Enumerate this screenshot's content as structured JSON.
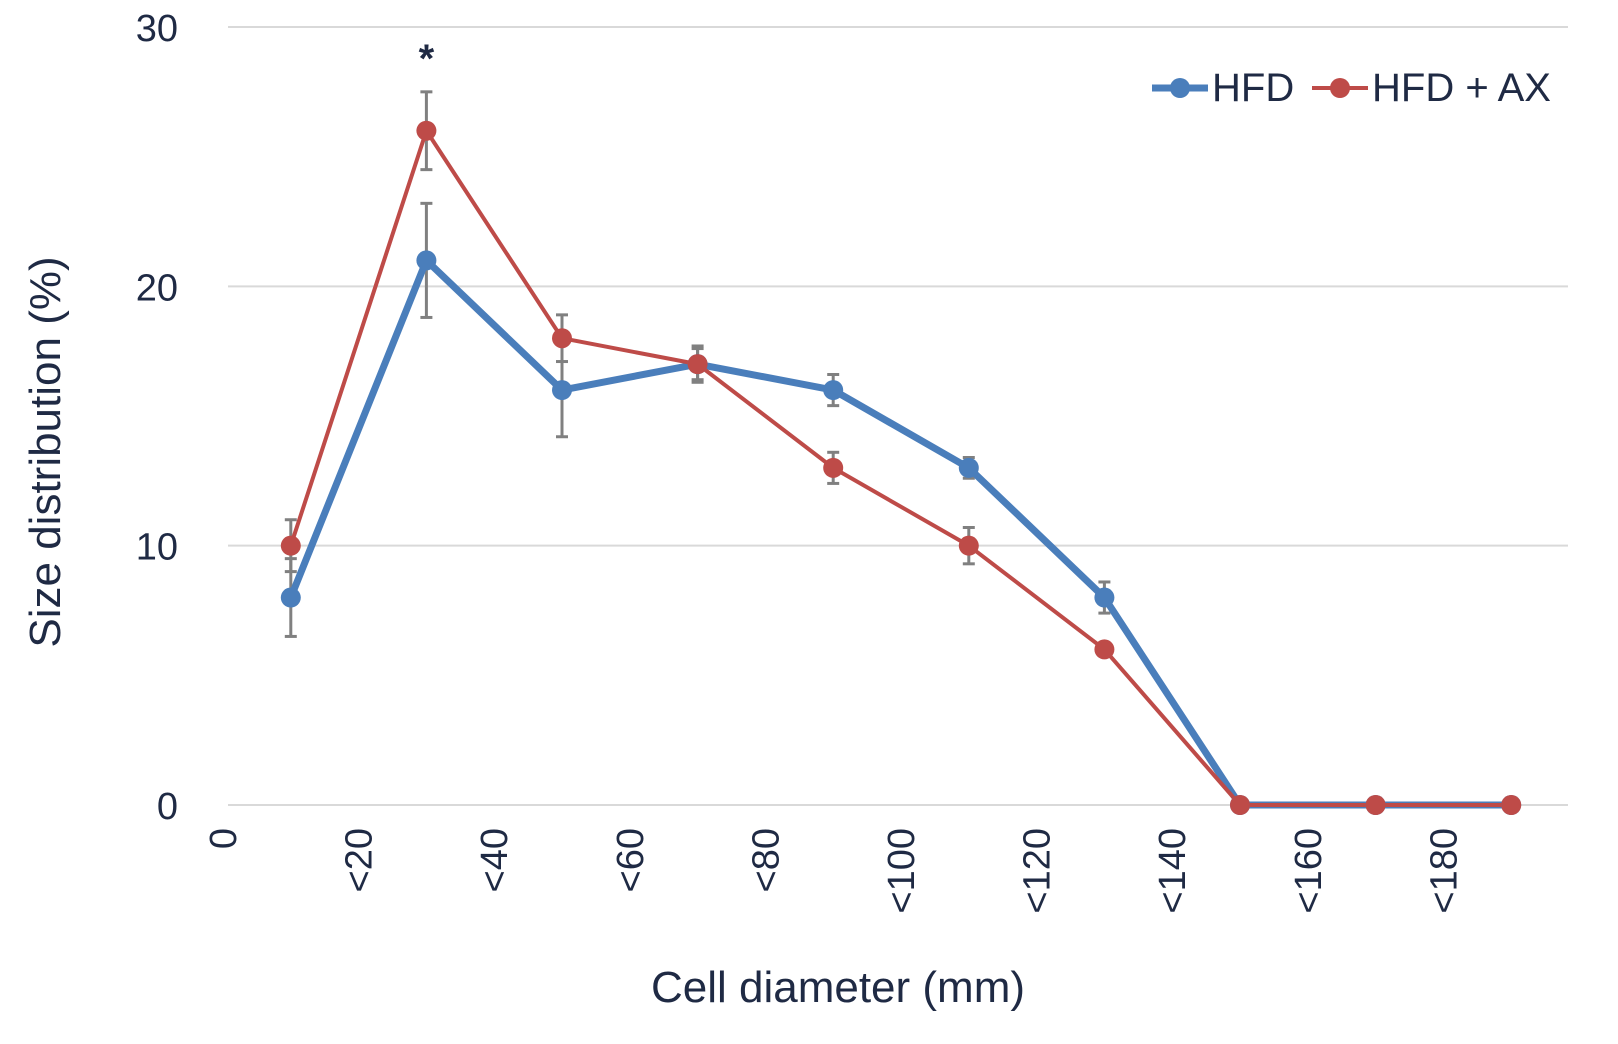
{
  "chart_data": {
    "type": "line",
    "title": "",
    "xlabel": "Cell diameter (mm)",
    "ylabel": "Size distribution (%)",
    "ylim": [
      0,
      30
    ],
    "y_ticks": [
      "0",
      "10",
      "20",
      "30"
    ],
    "x_tick_labels": [
      "0",
      "<20",
      "<40",
      "<60",
      "<80",
      "<100",
      "<120",
      "<140",
      "<160",
      "<180"
    ],
    "categories": [
      "10",
      "30",
      "50",
      "70",
      "90",
      "110",
      "130",
      "150",
      "170",
      "190"
    ],
    "grid": "horizontal",
    "legend_position": "top-right",
    "annotations": [
      {
        "text": "*",
        "category_index": 1
      }
    ],
    "series": [
      {
        "name": "HFD",
        "color": "#4a7ebb",
        "values": [
          8,
          21,
          16,
          17,
          16,
          13,
          8,
          0,
          0,
          0
        ],
        "error": [
          1.5,
          2.2,
          1.8,
          0.7,
          0.6,
          0.4,
          0.6,
          0,
          0,
          0
        ]
      },
      {
        "name": "HFD + AX",
        "color": "#be4b48",
        "values": [
          10,
          26,
          18,
          17,
          13,
          10,
          6,
          0,
          0,
          0
        ],
        "error": [
          1.0,
          1.5,
          0.9,
          0.6,
          0.6,
          0.7,
          0,
          0,
          0,
          0
        ]
      }
    ]
  }
}
